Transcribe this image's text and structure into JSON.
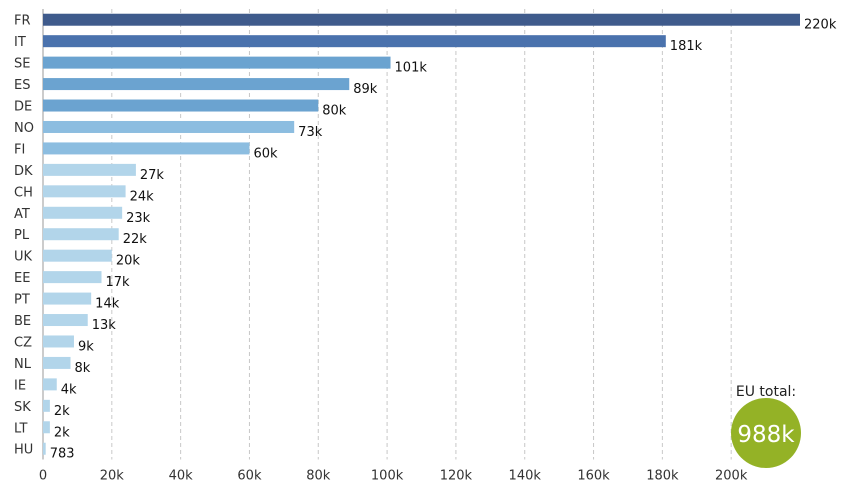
{
  "chart_data": {
    "type": "bar",
    "orientation": "horizontal",
    "categories": [
      "FR",
      "IT",
      "SE",
      "ES",
      "DE",
      "NO",
      "FI",
      "DK",
      "CH",
      "AT",
      "PL",
      "UK",
      "EE",
      "PT",
      "BE",
      "CZ",
      "NL",
      "IE",
      "SK",
      "LT",
      "HU"
    ],
    "values": [
      220000,
      181000,
      101000,
      89000,
      80000,
      73000,
      60000,
      27000,
      24000,
      23000,
      22000,
      20000,
      17000,
      14000,
      13000,
      9000,
      8000,
      4000,
      2000,
      2000,
      783
    ],
    "value_labels": [
      "220k",
      "181k",
      "101k",
      "89k",
      "80k",
      "73k",
      "60k",
      "27k",
      "24k",
      "23k",
      "22k",
      "20k",
      "17k",
      "14k",
      "13k",
      "9k",
      "8k",
      "4k",
      "2k",
      "2k",
      "783"
    ],
    "bar_colors": [
      "#3f5b8c",
      "#4a72ad",
      "#6ba3d0",
      "#6ba3d0",
      "#6ba3d0",
      "#8cbde0",
      "#8cbde0",
      "#b2d5ea",
      "#b2d5ea",
      "#b2d5ea",
      "#b2d5ea",
      "#b2d5ea",
      "#b2d5ea",
      "#b2d5ea",
      "#b2d5ea",
      "#b2d5ea",
      "#b2d5ea",
      "#b2d5ea",
      "#b2d5ea",
      "#b2d5ea",
      "#b2d5ea"
    ],
    "x_ticks": [
      0,
      20000,
      40000,
      60000,
      80000,
      100000,
      120000,
      140000,
      160000,
      180000,
      200000
    ],
    "x_tick_labels": [
      "0",
      "20k",
      "40k",
      "60k",
      "80k",
      "100k",
      "120k",
      "140k",
      "160k",
      "180k",
      "200k"
    ],
    "xlim": [
      0,
      220000
    ],
    "grid": true,
    "title": "",
    "xlabel": "",
    "ylabel": ""
  },
  "total_badge": {
    "caption": "EU total:",
    "value": "988k",
    "color": "#94b226"
  }
}
